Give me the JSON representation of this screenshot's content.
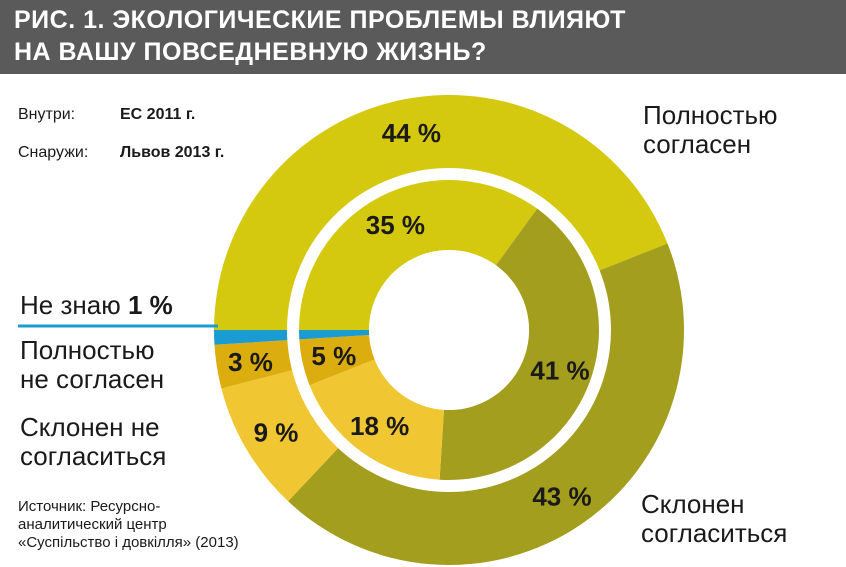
{
  "header": {
    "line1": "РИС. 1. ЭКОЛОГИЧЕСКИЕ ПРОБЛЕМЫ ВЛИЯЮТ",
    "line2": "НА ВАШУ ПОВСЕДНЕВНУЮ ЖИЗНЬ?"
  },
  "ring_legend": {
    "inner_label": "Внутри:",
    "inner_value": "ЕС 2011 г.",
    "outer_label": "Снаружи:",
    "outer_value": "Львов 2013 г."
  },
  "category_labels": {
    "fully_agree": [
      "Полностью",
      "согласен"
    ],
    "tend_agree": [
      "Склонен",
      "согласиться"
    ],
    "dont_know_text": "Не знаю",
    "dont_know_value": "1 %",
    "fully_disagree": [
      "Полностью",
      "не согласен"
    ],
    "tend_disagree": [
      "Склонен не",
      "согласиться"
    ]
  },
  "source": [
    "Источник: Ресурсно-",
    "аналитический центр",
    "«Суспільство і довкілля» (2013)"
  ],
  "chart_data": {
    "type": "donut",
    "title": "РИС. 1. ЭКОЛОГИЧЕСКИЕ ПРОБЛЕМЫ ВЛИЯЮТ НА ВАШУ ПОВСЕДНЕВНУЮ ЖИЗНЬ?",
    "categories": [
      "Полностью согласен",
      "Склонен согласиться",
      "Склонен не согласиться",
      "Полностью не согласен",
      "Не знаю"
    ],
    "colors": [
      "#d4c90f",
      "#a39e1d",
      "#f0c733",
      "#dbad0e",
      "#1a9bd2"
    ],
    "series": [
      {
        "name": "ЕС 2011 г.",
        "ring": "inner",
        "values": [
          35,
          41,
          18,
          5,
          1
        ],
        "labels": [
          "35 %",
          "41 %",
          "18 %",
          "5 %",
          ""
        ]
      },
      {
        "name": "Львов 2013 г.",
        "ring": "outer",
        "values": [
          44,
          43,
          9,
          3,
          1
        ],
        "labels": [
          "44 %",
          "43 %",
          "9 %",
          "3 %",
          ""
        ]
      }
    ]
  }
}
